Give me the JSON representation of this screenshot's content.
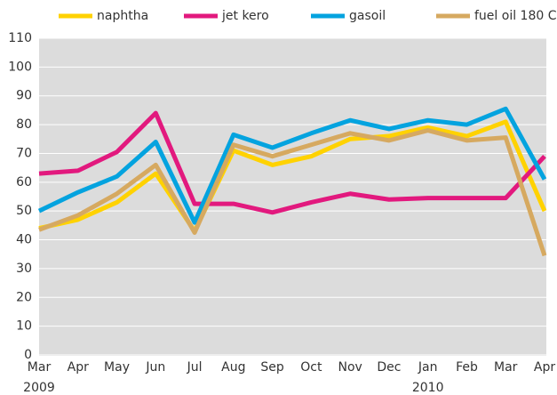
{
  "chart_data": {
    "type": "line",
    "categories": [
      "Mar",
      "Apr",
      "May",
      "Jun",
      "Jul",
      "Aug",
      "Sep",
      "Oct",
      "Nov",
      "Dec",
      "Jan",
      "Feb",
      "Mar",
      "Apr"
    ],
    "year_labels": [
      "2009",
      "2010"
    ],
    "series": [
      {
        "name": "naphtha",
        "color": "#ffd200",
        "values": [
          44,
          47,
          53,
          63,
          43,
          71,
          66,
          69,
          75,
          76,
          79,
          76,
          81,
          50
        ]
      },
      {
        "name": "jet kero",
        "color": "#e2197e",
        "values": [
          63,
          64,
          70.5,
          84,
          52.5,
          52.5,
          49.5,
          53,
          56,
          54,
          54.5,
          54.5,
          54.5,
          69
        ]
      },
      {
        "name": "gasoil",
        "color": "#04a3df",
        "values": [
          50,
          56.5,
          62,
          74,
          46,
          76.5,
          72,
          77,
          81.5,
          78.5,
          81.5,
          80,
          85.5,
          61
        ]
      },
      {
        "name": "fuel oil 180 Cst",
        "color": "#d6a960",
        "values": [
          43.5,
          48.5,
          56,
          66,
          42.5,
          73,
          69,
          73,
          77,
          74.5,
          78,
          74.5,
          75.5,
          34.5
        ]
      }
    ],
    "ylim": [
      0,
      110
    ],
    "yticks": [
      0,
      10,
      20,
      30,
      40,
      50,
      60,
      70,
      80,
      90,
      100,
      110
    ],
    "grid": true
  }
}
